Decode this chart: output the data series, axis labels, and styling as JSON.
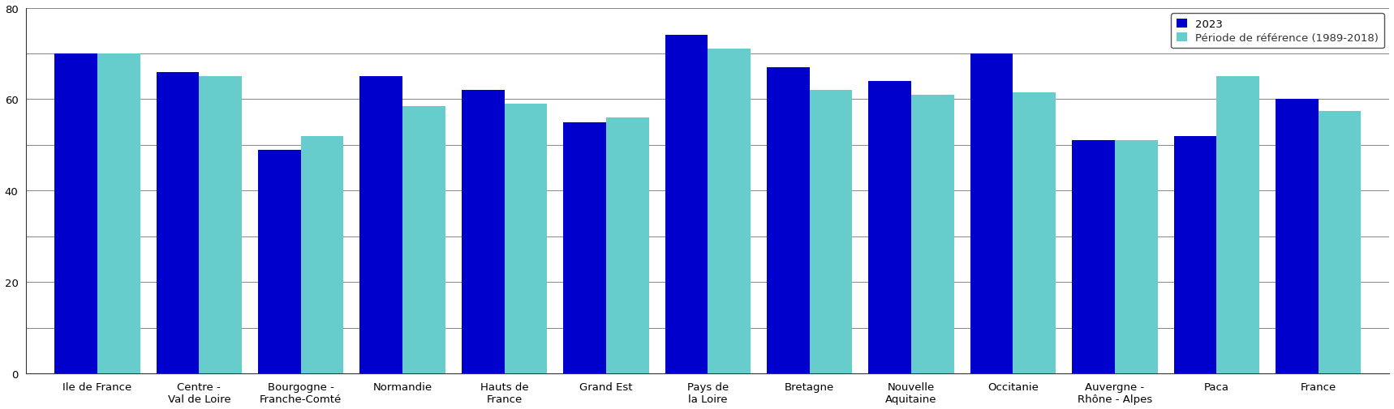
{
  "categories": [
    "Ile de France",
    "Centre -\nVal de Loire",
    "Bourgogne -\nFranche-Comté",
    "Normandie",
    "Hauts de\nFrance",
    "Grand Est",
    "Pays de\nla Loire",
    "Bretagne",
    "Nouvelle\nAquitaine",
    "Occitanie",
    "Auvergne -\nRhône - Alpes",
    "Paca",
    "France"
  ],
  "values_2023": [
    70,
    66,
    49,
    65,
    62,
    55,
    74,
    67,
    64,
    70,
    51,
    52,
    60
  ],
  "values_ref": [
    70,
    65,
    52,
    58.5,
    59,
    56,
    71,
    62,
    61,
    61.5,
    51,
    65,
    57.5
  ],
  "color_2023": "#0000cc",
  "color_ref": "#66cccc",
  "ylim": [
    0,
    80
  ],
  "yticks": [
    0,
    10,
    20,
    30,
    40,
    50,
    60,
    70,
    80
  ],
  "legend_2023": "2023",
  "legend_ref": "Période de référence (1989-2018)",
  "bar_width": 0.42,
  "grid_color": "#888888",
  "background_color": "#ffffff",
  "spine_color": "#333333",
  "tick_fontsize": 9.5,
  "label_fontsize": 9.5
}
